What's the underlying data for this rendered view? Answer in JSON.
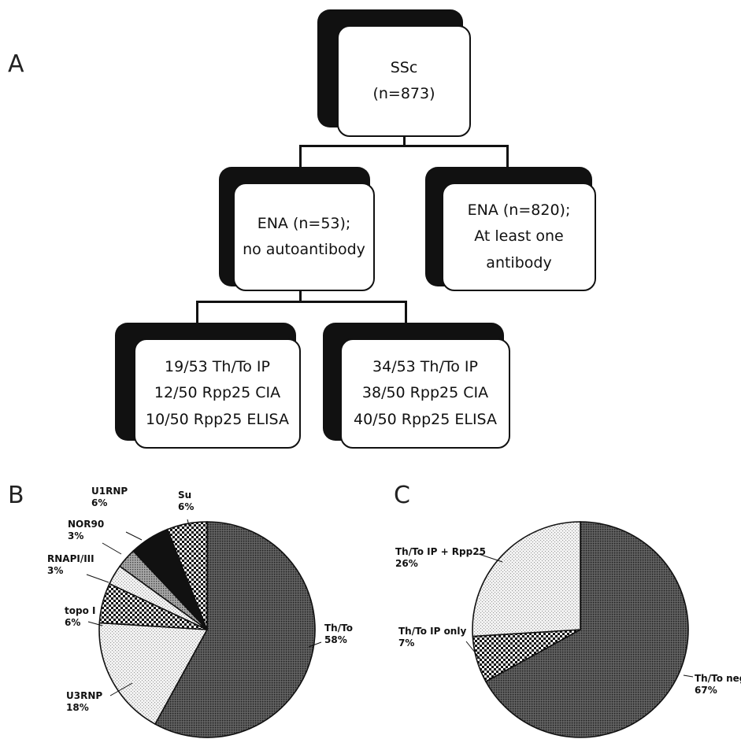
{
  "panels": {
    "a": "A",
    "b": "B",
    "c": "C"
  },
  "flowchart": {
    "root": {
      "lines": [
        "SSc",
        "(n=873)"
      ]
    },
    "ena_negative": {
      "lines": [
        "ENA (n=53);",
        "no autoantibody"
      ]
    },
    "ena_positive": {
      "lines": [
        "ENA (n=820);",
        "At least one",
        "antibody"
      ]
    },
    "left_leaf": {
      "lines": [
        "19/53 Th/To IP",
        "12/50 Rpp25 CIA",
        "10/50 Rpp25 ELISA"
      ]
    },
    "right_leaf": {
      "lines": [
        "34/53 Th/To IP",
        "38/50 Rpp25 CIA",
        "40/50  Rpp25 ELISA"
      ]
    }
  },
  "chart_data": [
    {
      "type": "pie",
      "panel": "B",
      "start": "12 o'clock",
      "direction": "clockwise",
      "slices": [
        {
          "label": "Th/To",
          "value": 58,
          "pct": "58%",
          "fill": "dense-dots-dark",
          "label_side": "right"
        },
        {
          "label": "U3RNP",
          "value": 18,
          "pct": "18%",
          "fill": "light-dots",
          "label_side": "left"
        },
        {
          "label": "topo I",
          "value": 6,
          "pct": "6%",
          "fill": "checker",
          "label_side": "left"
        },
        {
          "label": "RNAPI/III",
          "value": 3,
          "pct": "3%",
          "fill": "light-dots",
          "label_side": "left"
        },
        {
          "label": "NOR90",
          "value": 3,
          "pct": "3%",
          "fill": "medium-dots",
          "label_side": "left"
        },
        {
          "label": "U1RNP",
          "value": 6,
          "pct": "6%",
          "fill": "solid-black",
          "label_side": "left"
        },
        {
          "label": "Su",
          "value": 6,
          "pct": "6%",
          "fill": "checker",
          "label_side": "top"
        }
      ]
    },
    {
      "type": "pie",
      "panel": "C",
      "start": "12 o'clock",
      "direction": "clockwise",
      "slices": [
        {
          "label": "Th/To neg",
          "value": 67,
          "pct": "67%",
          "fill": "dense-dots-dark",
          "label_side": "right"
        },
        {
          "label": "Th/To IP only",
          "value": 7,
          "pct": "7%",
          "fill": "checker",
          "label_side": "left"
        },
        {
          "label": "Th/To IP + Rpp25",
          "value": 26,
          "pct": "26%",
          "fill": "light-dots",
          "label_side": "left"
        }
      ]
    }
  ]
}
